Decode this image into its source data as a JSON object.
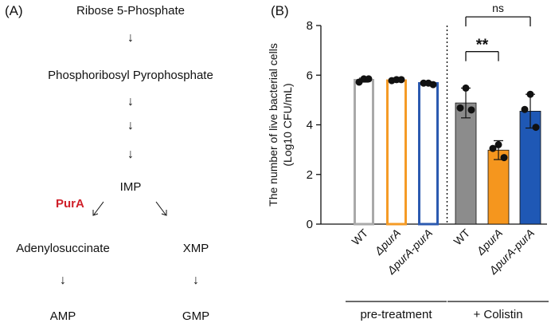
{
  "panels": {
    "a_label": "(A)",
    "b_label": "(B)"
  },
  "pathway": {
    "nodes": {
      "ribose": "Ribose 5-Phosphate",
      "prpp": "Phosphoribosyl Pyrophosphate",
      "imp": "IMP",
      "adenylosuccinate": "Adenylosuccinate",
      "xmp": "XMP",
      "amp": "AMP",
      "gmp": "GMP"
    },
    "enzyme": "PurA",
    "enzyme_color": "#d0202a",
    "arrow_glyph": "↓"
  },
  "chart_data": {
    "type": "bar",
    "ylabel_line1": "The number of live bacterial cells",
    "ylabel_line2": "(Log10 CFU/mL)",
    "ylim": [
      0,
      8
    ],
    "yticks": [
      "0",
      "2",
      "4",
      "6",
      "8"
    ],
    "categories": [
      "WT",
      "ΔpurA",
      "ΔpurA-purA",
      "WT",
      "ΔpurA",
      "ΔpurA-purA"
    ],
    "groups": [
      {
        "label": "pre-treatment",
        "from": 0,
        "to": 2
      },
      {
        "label": "+ Colistin",
        "from": 3,
        "to": 5
      }
    ],
    "bars": [
      {
        "category": "WT",
        "group": "pre-treatment",
        "value": 5.8,
        "sd": 0.08,
        "style": "outline",
        "color": "#a9a9a9",
        "points": [
          5.72,
          5.85,
          5.85
        ]
      },
      {
        "category": "ΔpurA",
        "group": "pre-treatment",
        "value": 5.78,
        "sd": 0.06,
        "style": "outline",
        "color": "#f59b26",
        "points": [
          5.78,
          5.82,
          5.82
        ]
      },
      {
        "category": "ΔpurA-purA",
        "group": "pre-treatment",
        "value": 5.67,
        "sd": 0.06,
        "style": "outline",
        "color": "#2c5ab0",
        "points": [
          5.68,
          5.68,
          5.62
        ]
      },
      {
        "category": "WT",
        "group": "+ Colistin",
        "value": 4.88,
        "sd": 0.6,
        "style": "filled",
        "color": "#8c8c8c",
        "points": [
          5.48,
          4.68,
          4.6
        ]
      },
      {
        "category": "ΔpurA",
        "group": "+ Colistin",
        "value": 2.98,
        "sd": 0.38,
        "style": "filled",
        "color": "#f5961e",
        "points": [
          3.2,
          3.05,
          2.68
        ]
      },
      {
        "category": "ΔpurA-purA",
        "group": "+ Colistin",
        "value": 4.55,
        "sd": 0.68,
        "style": "filled",
        "color": "#1f58b5",
        "points": [
          5.23,
          4.62,
          3.9
        ]
      }
    ],
    "significance": [
      {
        "from": 3,
        "to": 4,
        "label": "**",
        "y": 6.95
      },
      {
        "from": 3,
        "to": 5,
        "label": "ns",
        "y": 8.35
      }
    ],
    "divider_after": 2
  }
}
